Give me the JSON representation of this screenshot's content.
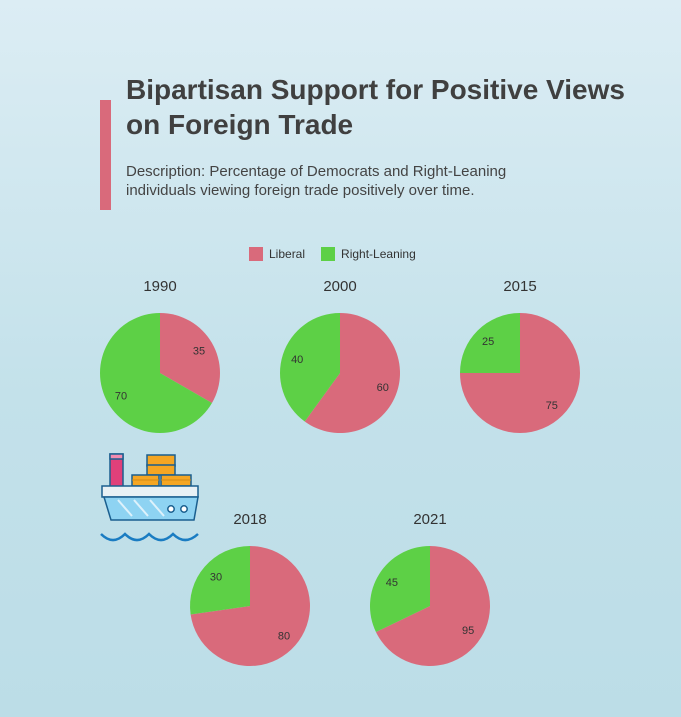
{
  "header": {
    "title": "Bipartisan Support for Positive Views on Foreign Trade",
    "description": "Description: Percentage of Democrats and Right-Leaning individuals viewing foreign trade positively over time."
  },
  "colors": {
    "liberal": "#d96a7b",
    "right_leaning": "#5dd046",
    "accent": "#d96a7b"
  },
  "decoration": {
    "icon": "cargo-ship-icon"
  },
  "chart_data": {
    "type": "pie",
    "legend_position": "top",
    "legend": [
      "Liberal",
      "Right-Leaning"
    ],
    "pies": [
      {
        "title": "1990",
        "values": [
          35,
          70
        ]
      },
      {
        "title": "2000",
        "values": [
          60,
          40
        ]
      },
      {
        "title": "2015",
        "values": [
          75,
          25
        ]
      },
      {
        "title": "2018",
        "values": [
          80,
          30
        ]
      },
      {
        "title": "2021",
        "values": [
          95,
          45
        ]
      }
    ]
  }
}
